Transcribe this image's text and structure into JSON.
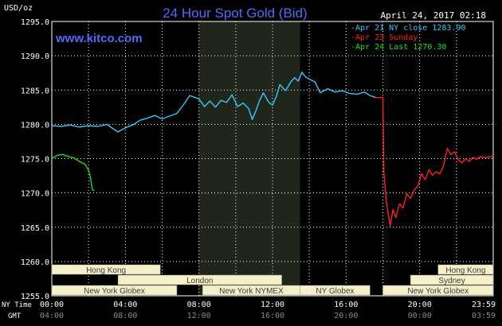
{
  "header": {
    "unit": "USD/oz",
    "title": "24 Hour Spot Gold (Bid)",
    "date": "April 24, 2017 02:18",
    "site": "www.kitco.com"
  },
  "legend": [
    {
      "label": "Apr 21 NY close 1283.90",
      "color": "#33c8ff"
    },
    {
      "label": "Apr 23 Sunday",
      "color": "#ff2020"
    },
    {
      "label": "Apr 24 Last 1270.30",
      "color": "#22dd22"
    }
  ],
  "colors": {
    "grid": "#ffffff",
    "text": "#ffffff",
    "title": "#4c6cff",
    "session_fill": "#f5f0c8",
    "session_text": "#3a3a3a",
    "nymex_shade": "#20261c"
  },
  "axis_labels": {
    "ny_time": "NY Time",
    "gmt": "GMT"
  },
  "chart_data": {
    "type": "line",
    "title": "24 Hour Spot Gold (Bid)",
    "ylabel": "USD/oz",
    "ylim": [
      1255,
      1295
    ],
    "xlim": [
      0,
      24
    ],
    "grid": true,
    "y_ticks": [
      "1295.0",
      "1290.0",
      "1285.0",
      "1280.0",
      "1275.0",
      "1270.0",
      "1265.0",
      "1260.0",
      "1255.0"
    ],
    "x_ticks_ny": [
      "00:00",
      "04:00",
      "08:00",
      "12:00",
      "16:00",
      "20:00",
      "23:59"
    ],
    "x_ticks_gmt": [
      "04:00",
      "08:00",
      "12:00",
      "16:00",
      "20:00",
      "00:00",
      "03:59"
    ],
    "nymex_window": [
      8.0,
      13.5
    ],
    "series": [
      {
        "name": "Apr 21 NY close 1283.90",
        "color": "#33c8ff",
        "x": [
          0,
          0.5,
          1,
          1.5,
          2,
          2.5,
          3,
          3.3,
          3.6,
          4,
          4.4,
          4.8,
          5.2,
          5.6,
          6,
          6.4,
          6.8,
          7.2,
          7.5,
          7.8,
          8,
          8.3,
          8.6,
          8.9,
          9.2,
          9.5,
          9.8,
          10.1,
          10.4,
          10.7,
          10.9,
          11.1,
          11.3,
          11.5,
          11.8,
          12,
          12.2,
          12.4,
          12.7,
          13,
          13.2,
          13.4,
          13.6,
          13.8,
          14,
          14.3,
          14.6,
          15,
          15.4,
          15.8,
          16.2,
          16.6,
          17,
          17.3,
          17.6
        ],
        "values": [
          1279.8,
          1279.7,
          1279.9,
          1279.6,
          1279.8,
          1279.7,
          1280.0,
          1279.4,
          1278.9,
          1279.5,
          1279.9,
          1280.6,
          1280.9,
          1281.3,
          1280.8,
          1281.2,
          1281.6,
          1283.0,
          1284.2,
          1283.9,
          1283.7,
          1282.6,
          1283.4,
          1282.5,
          1283.5,
          1283.2,
          1284.3,
          1282.6,
          1283.1,
          1282.3,
          1280.7,
          1282.0,
          1283.5,
          1284.6,
          1283.2,
          1282.8,
          1284.0,
          1285.8,
          1284.9,
          1286.2,
          1286.8,
          1286.3,
          1287.6,
          1286.9,
          1286.6,
          1286.2,
          1284.6,
          1285.2,
          1284.7,
          1284.9,
          1284.5,
          1284.4,
          1284.7,
          1284.2,
          1283.9
        ]
      },
      {
        "name": "Apr 23 Sunday",
        "color": "#ff2020",
        "x": [
          17.6,
          18.0,
          18.05,
          18.2,
          18.4,
          18.55,
          18.7,
          18.9,
          19.1,
          19.3,
          19.5,
          19.7,
          19.9,
          20.1,
          20.3,
          20.5,
          20.7,
          20.9,
          21.1,
          21.3,
          21.5,
          21.7,
          21.9,
          22.1,
          22.3,
          22.5,
          22.7,
          22.9,
          23.1,
          23.3,
          23.6,
          24.0
        ],
        "values": [
          1283.9,
          1283.9,
          1273.0,
          1268.5,
          1265.2,
          1267.6,
          1266.4,
          1268.4,
          1267.8,
          1269.9,
          1269.2,
          1270.4,
          1271.0,
          1272.8,
          1271.9,
          1273.4,
          1272.6,
          1273.1,
          1272.8,
          1274.0,
          1276.5,
          1275.6,
          1276.0,
          1274.8,
          1274.4,
          1275.0,
          1274.6,
          1275.2,
          1274.9,
          1275.3,
          1275.1,
          1275.4
        ]
      },
      {
        "name": "Apr 24 Last 1270.30",
        "color": "#22dd22",
        "x": [
          0,
          0.3,
          0.6,
          0.9,
          1.2,
          1.5,
          1.8,
          2.0,
          2.1,
          2.2,
          2.3
        ],
        "values": [
          1275.0,
          1275.5,
          1275.6,
          1275.3,
          1275.1,
          1274.6,
          1274.2,
          1273.3,
          1272.3,
          1270.5,
          1270.3
        ]
      }
    ]
  },
  "sessions": [
    {
      "label": "Hong Kong",
      "start": 0,
      "end": 5.9,
      "row": 0
    },
    {
      "label": "London",
      "start": 3.6,
      "end": 12.5,
      "row": 1
    },
    {
      "label": "New York Globex",
      "start": 0,
      "end": 6.8,
      "row": 2
    },
    {
      "label": "New York NYMEX",
      "start": 8.2,
      "end": 13.5,
      "row": 2
    },
    {
      "label": "NY Globex",
      "start": 13.5,
      "end": 17.3,
      "row": 2
    },
    {
      "label": "Hong Kong",
      "start": 21.0,
      "end": 24,
      "row": 0
    },
    {
      "label": "Sydney",
      "start": 19.5,
      "end": 24,
      "row": 1
    },
    {
      "label": "New York Globex",
      "start": 18.0,
      "end": 24,
      "row": 2
    }
  ]
}
